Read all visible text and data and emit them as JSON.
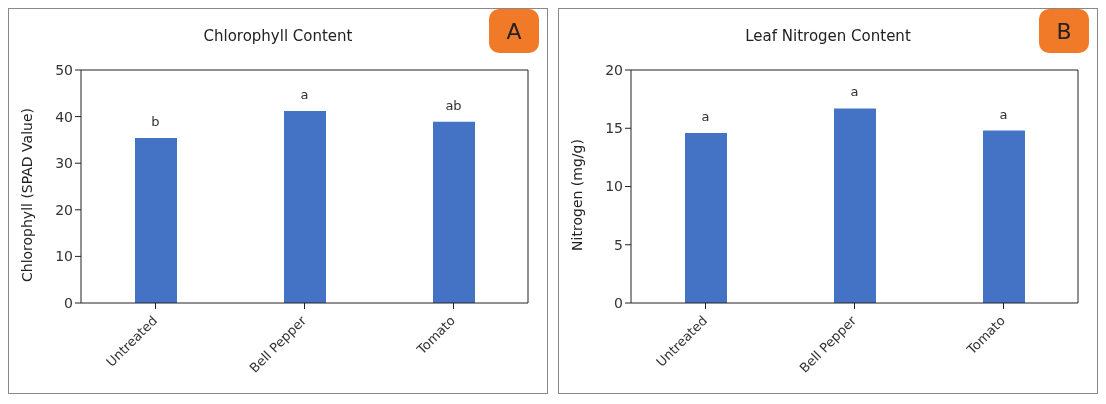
{
  "chart_data": [
    {
      "type": "bar",
      "title": "Chlorophyll Content",
      "ylabel": "Chlorophyll (SPAD Value)",
      "categories": [
        "Untreated",
        "Bell Pepper",
        "Tomato"
      ],
      "values": [
        35.4,
        41.2,
        38.9
      ],
      "color": "#4472c4",
      "ylim": [
        0,
        50
      ],
      "yticks": [
        0,
        10,
        20,
        30,
        40,
        50
      ],
      "grid": false,
      "legend": false,
      "annotations": [
        "A",
        {
          "text": "b",
          "x": "Untreated",
          "y": 35.4
        },
        {
          "text": "a",
          "x": "Bell Pepper",
          "y": 41.2
        },
        {
          "text": "ab",
          "x": "Tomato",
          "y": 38.9
        }
      ]
    },
    {
      "type": "bar",
      "title": "Leaf Nitrogen Content",
      "ylabel": "Nitrogen (mg/g)",
      "categories": [
        "Untreated",
        "Bell Pepper",
        "Tomato"
      ],
      "values": [
        14.6,
        16.7,
        14.8
      ],
      "color": "#4472c4",
      "ylim": [
        0,
        20
      ],
      "yticks": [
        0,
        5,
        10,
        15,
        20
      ],
      "grid": false,
      "legend": false,
      "annotations": [
        "B",
        {
          "text": "a",
          "x": "Untreated",
          "y": 14.6
        },
        {
          "text": "a",
          "x": "Bell Pepper",
          "y": 16.7
        },
        {
          "text": "a",
          "x": "Tomato",
          "y": 14.8
        }
      ]
    }
  ]
}
